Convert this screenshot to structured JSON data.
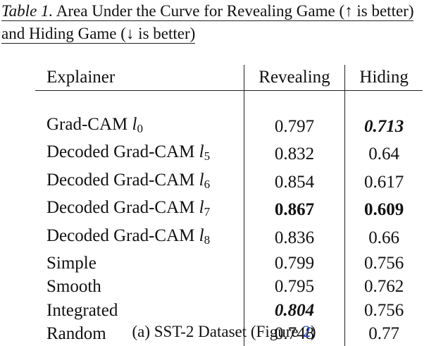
{
  "caption": {
    "label": "Table 1.",
    "line1": "Area Under the Curve for Revealing Game (↑ is better)",
    "line2": "and Hiding Game (↓ is better)"
  },
  "table": {
    "headers": [
      "Explainer",
      "Revealing",
      "Hiding"
    ],
    "rows": [
      {
        "name": "Grad-CAM",
        "var": "l",
        "sub": "0",
        "revealing": "0.797",
        "hiding": "0.713",
        "rev_style": "",
        "hid_style": "bolditalic"
      },
      {
        "name": "Decoded Grad-CAM",
        "var": "l",
        "sub": "5",
        "revealing": "0.832",
        "hiding": "0.64",
        "rev_style": "",
        "hid_style": ""
      },
      {
        "name": "Decoded Grad-CAM",
        "var": "l",
        "sub": "6",
        "revealing": "0.854",
        "hiding": "0.617",
        "rev_style": "",
        "hid_style": ""
      },
      {
        "name": "Decoded Grad-CAM",
        "var": "l",
        "sub": "7",
        "revealing": "0.867",
        "hiding": "0.609",
        "rev_style": "bold",
        "hid_style": "bold"
      },
      {
        "name": "Decoded Grad-CAM",
        "var": "l",
        "sub": "8",
        "revealing": "0.836",
        "hiding": "0.66",
        "rev_style": "",
        "hid_style": ""
      },
      {
        "name": "Simple",
        "var": "",
        "sub": "",
        "revealing": "0.799",
        "hiding": "0.756",
        "rev_style": "",
        "hid_style": ""
      },
      {
        "name": "Smooth",
        "var": "",
        "sub": "",
        "revealing": "0.795",
        "hiding": "0.762",
        "rev_style": "",
        "hid_style": ""
      },
      {
        "name": "Integrated",
        "var": "",
        "sub": "",
        "revealing": "0.804",
        "hiding": "0.756",
        "rev_style": "bolditalic",
        "hid_style": ""
      },
      {
        "name": "Random",
        "var": "",
        "sub": "",
        "revealing": "0.748",
        "hiding": "0.77",
        "rev_style": "",
        "hid_style": ""
      }
    ]
  },
  "subcaption": {
    "prefix": "(a) SST-2 Dataset (Figure ",
    "ref": "2",
    "suffix": ")"
  }
}
